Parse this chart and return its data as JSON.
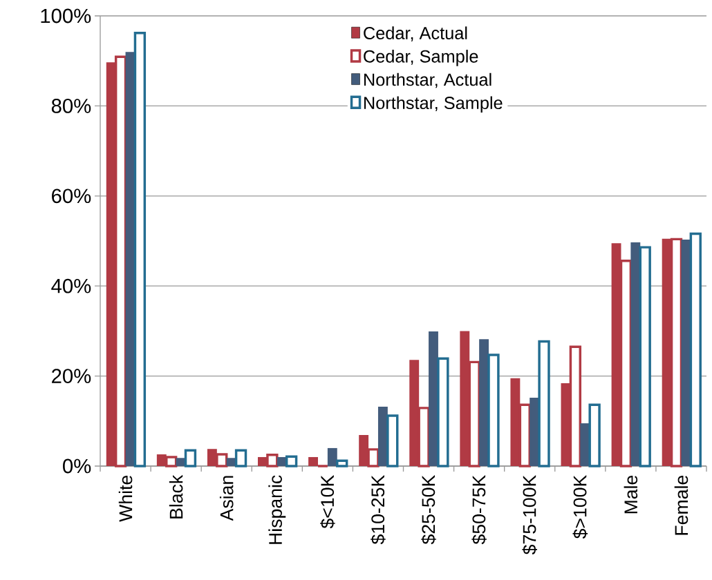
{
  "chart_data": {
    "type": "bar",
    "categories": [
      "White",
      "Black",
      "Asian",
      "Hispanic",
      "$<10K",
      "$10-25K",
      "$25-50K",
      "$50-75K",
      "$75-100K",
      "$>100K",
      "Male",
      "Female"
    ],
    "series": [
      {
        "name": "Cedar, Actual",
        "color": "#b13a44",
        "values": [
          89.7,
          2.6,
          3.8,
          2.0,
          2.0,
          6.9,
          23.6,
          30.0,
          19.5,
          18.4,
          49.5,
          50.5
        ]
      },
      {
        "name": "Cedar, Sample",
        "color": "#b13a44",
        "values": [
          90.9,
          2.0,
          2.6,
          2.5,
          0,
          3.7,
          12.9,
          23.1,
          13.6,
          26.5,
          45.6,
          50.4
        ]
      },
      {
        "name": "Northstar, Actual",
        "color": "#435c7c",
        "values": [
          92.0,
          1.8,
          1.8,
          2.0,
          4.0,
          13.2,
          29.9,
          28.2,
          15.2,
          9.5,
          49.7,
          50.3
        ]
      },
      {
        "name": "Northstar, Sample",
        "color": "#236d91",
        "values": [
          96.2,
          3.5,
          3.5,
          2.1,
          1.2,
          11.2,
          23.9,
          24.7,
          27.7,
          13.6,
          48.6,
          51.6
        ]
      }
    ],
    "ylim": [
      0,
      100
    ],
    "yticks": [
      {
        "value": 0,
        "label": "0%"
      },
      {
        "value": 20,
        "label": "20%"
      },
      {
        "value": 40,
        "label": "40%"
      },
      {
        "value": 60,
        "label": "60%"
      },
      {
        "value": 80,
        "label": "80%"
      },
      {
        "value": 100,
        "label": "100%"
      }
    ],
    "grid": "y",
    "legend": "top"
  }
}
